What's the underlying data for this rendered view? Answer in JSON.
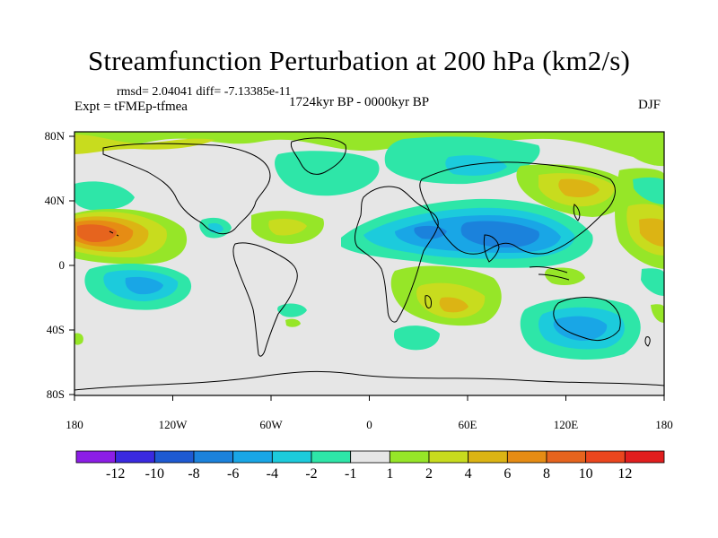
{
  "title": "Streamfunction Perturbation at 200 hPa (km2/s)",
  "rmsd_text": "rmsd= 2.04041 diff= -7.13385e-11",
  "experiment": "Expt = tFMEp-tfmea",
  "period": "1724kyr BP - 0000kyr BP",
  "season": "DJF",
  "x_ticks": [
    "180",
    "120W",
    "60W",
    "0",
    "60E",
    "120E",
    "180"
  ],
  "y_ticks": [
    "80N",
    "40N",
    "0",
    "40S",
    "80S"
  ],
  "colorbar": {
    "labels": [
      "-12",
      "-10",
      "-8",
      "-6",
      "-4",
      "-2",
      "-1",
      "1",
      "2",
      "4",
      "6",
      "8",
      "10",
      "12"
    ],
    "colors": [
      "#8c1ee6",
      "#3a2ae0",
      "#1e5ad2",
      "#1b82dc",
      "#19a6e6",
      "#1ccbdc",
      "#2ee6a8",
      "#e6e6e6",
      "#96e628",
      "#c8dc1e",
      "#dcb414",
      "#e68c14",
      "#e6641e",
      "#eb461e",
      "#e11e1e"
    ]
  }
}
